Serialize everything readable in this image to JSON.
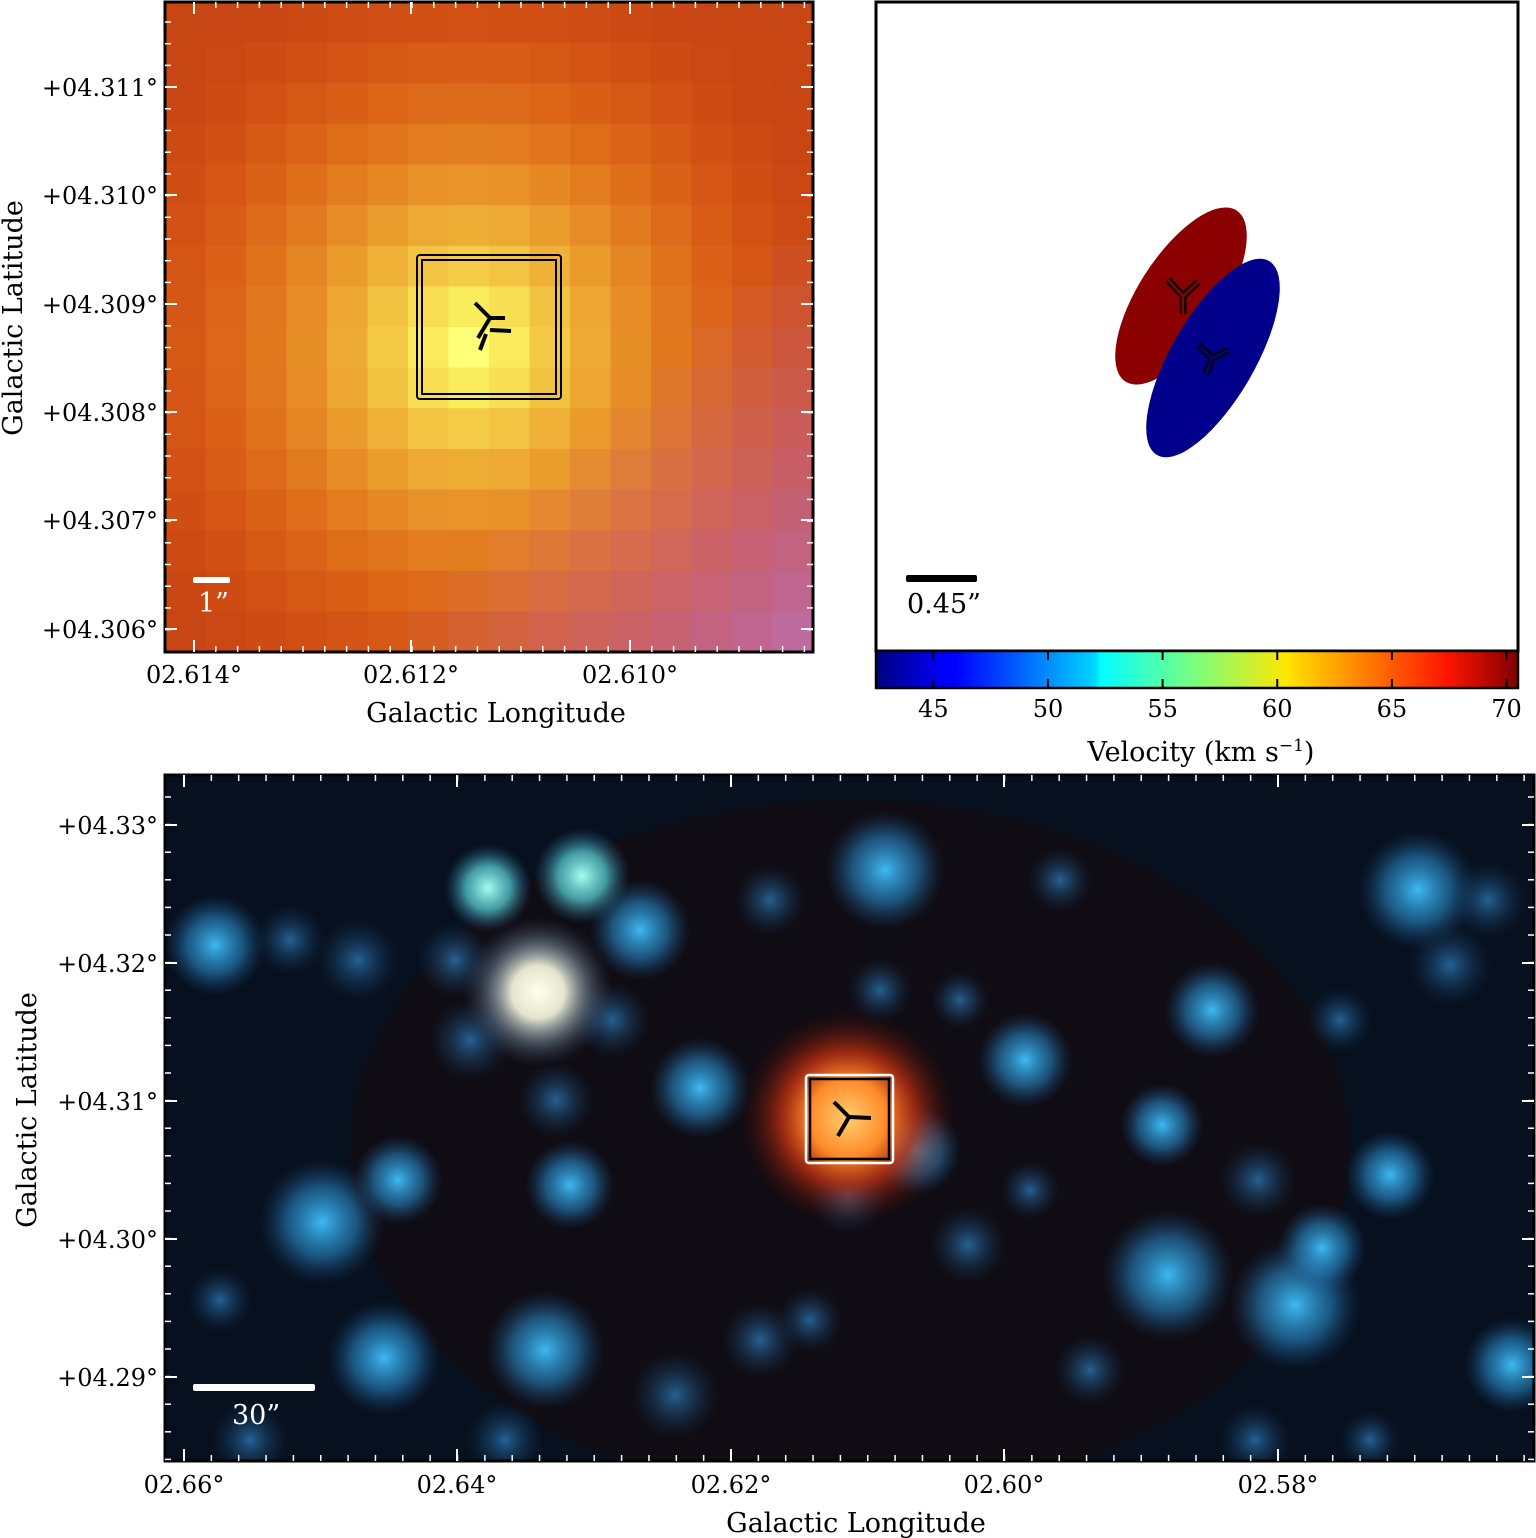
{
  "panel_a": {
    "y_ticks": [
      "+04.311°",
      "+04.310°",
      "+04.309°",
      "+04.308°",
      "+04.307°",
      "+04.306°"
    ],
    "x_ticks": [
      "02.614°",
      "02.612°",
      "02.610°"
    ],
    "x_label": "Galactic Longitude",
    "y_label": "Galactic Latitude",
    "scale_bar": "1”"
  },
  "panel_b": {
    "scale_bar": "0.45”",
    "ellipses": [
      {
        "color": "#8b0000",
        "velocity_kms": 69
      },
      {
        "color": "#00008b",
        "velocity_kms": 43
      }
    ],
    "colorbar": {
      "ticks": [
        "45",
        "50",
        "55",
        "60",
        "65",
        "70"
      ],
      "label": "Velocity (km s",
      "label_sup": "−1",
      "label_end": ")",
      "range": [
        42.5,
        70.5
      ],
      "colormap": "jet"
    }
  },
  "panel_c": {
    "y_ticks": [
      "+04.33°",
      "+04.32°",
      "+04.31°",
      "+04.30°",
      "+04.29°"
    ],
    "x_ticks": [
      "02.66°",
      "02.64°",
      "02.62°",
      "02.60°",
      "02.58°"
    ],
    "x_label": "Galactic Longitude",
    "y_label": "Galactic Latitude",
    "scale_bar": "30”"
  },
  "marker_icon": "tri-marker-icon"
}
